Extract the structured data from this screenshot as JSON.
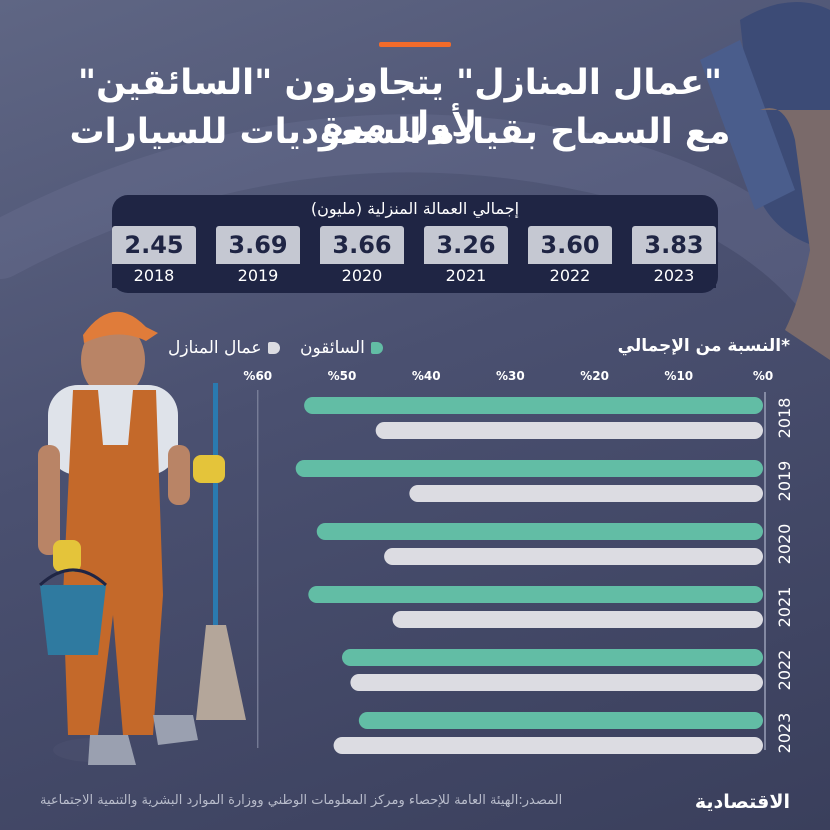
{
  "header": {
    "title_line1": "\"عمال المنازل\" يتجاوزون \"السائقين\" لأول مرة",
    "title_line2": "مع السماح بقيادة السعوديات للسيارات"
  },
  "totals": {
    "caption": "إجمالي العمالة المنزلية (مليون)",
    "items": [
      {
        "year": "2023",
        "value": "3.83"
      },
      {
        "year": "2022",
        "value": "3.60"
      },
      {
        "year": "2021",
        "value": "3.26"
      },
      {
        "year": "2020",
        "value": "3.66"
      },
      {
        "year": "2019",
        "value": "3.69"
      },
      {
        "year": "2018",
        "value": "2.45"
      }
    ]
  },
  "legend": {
    "drivers": "السائقون",
    "housemaids": "عمال المنازل"
  },
  "footer": {
    "source": "المصدر:الهيئة العامة للإحصاء ومركز المعلومات الوطني ووزارة الموارد البشرية والتنمية الاجتماعية",
    "logo": "الاقتصادية"
  },
  "colors": {
    "accent": "#f26b2a",
    "drivers": "#62bda5",
    "housemaids": "#dcdce2",
    "panel": "#1f2544"
  },
  "chart_data": {
    "type": "bar",
    "orientation": "horizontal",
    "ylabel": "*النسبة من الإجمالي",
    "categories": [
      "2018",
      "2019",
      "2020",
      "2021",
      "2022",
      "2023"
    ],
    "ticks": [
      "%0",
      "%10",
      "%20",
      "%30",
      "%40",
      "%50",
      "%60"
    ],
    "xlim": [
      0,
      60
    ],
    "series": [
      {
        "name": "السائقون",
        "key": "drivers",
        "values": [
          54.5,
          55.5,
          53,
          54,
          50,
          48
        ]
      },
      {
        "name": "عمال المنازل",
        "key": "housemaids",
        "values": [
          46,
          42,
          45,
          44,
          49,
          51
        ]
      }
    ]
  }
}
